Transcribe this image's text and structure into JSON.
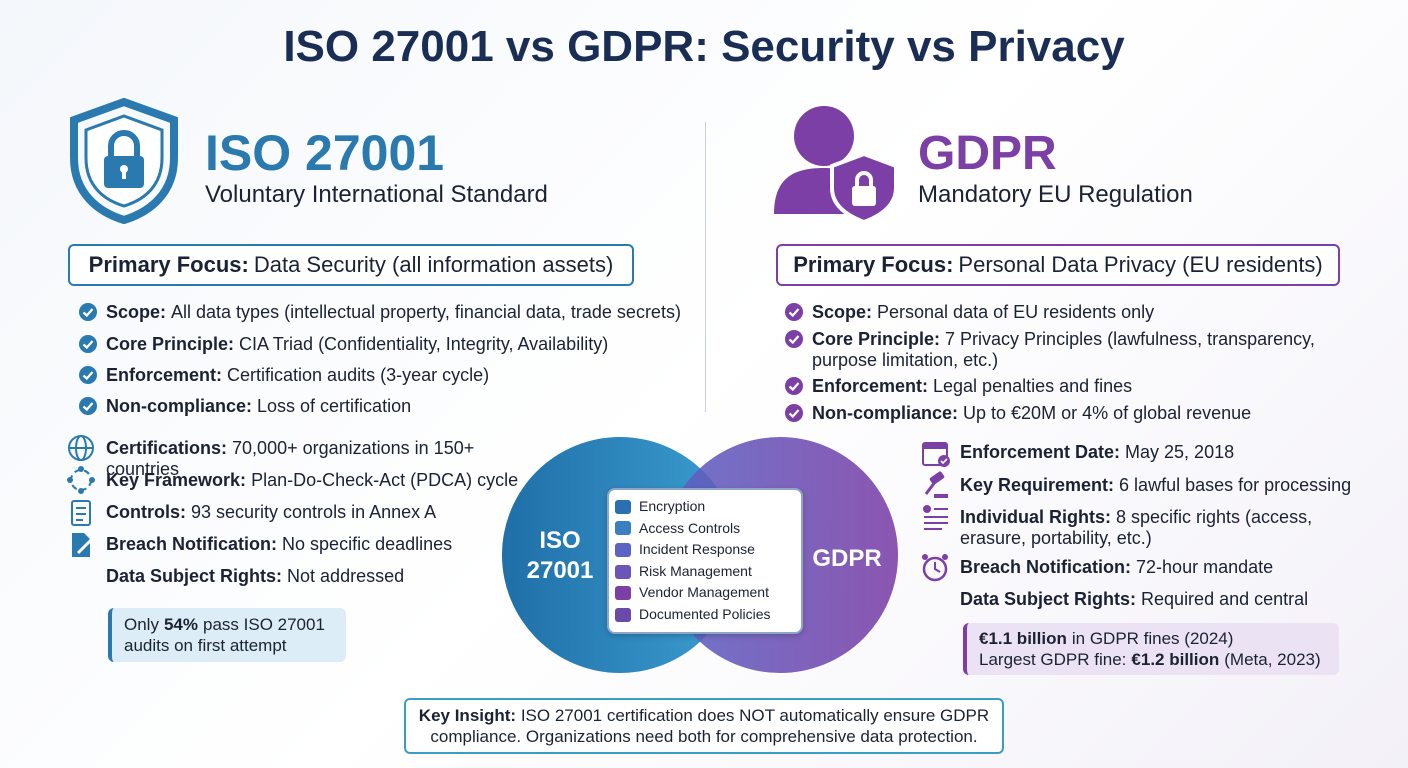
{
  "title": "ISO 27001 vs GDPR: Security vs Privacy",
  "iso": {
    "name": "ISO 27001",
    "subtitle": "Voluntary International Standard",
    "focus": {
      "label": "Primary Focus:",
      "text": "Data Security (all information assets)"
    },
    "points": [
      {
        "label": "Scope:",
        "text": "All data types (intellectual property, financial data, trade secrets)"
      },
      {
        "label": "Core Principle:",
        "text": "CIA Triad (Confidentiality, Integrity, Availability)"
      },
      {
        "label": "Enforcement:",
        "text": "Certification audits (3-year cycle)"
      },
      {
        "label": "Non-compliance:",
        "text": "Loss of certification"
      }
    ],
    "facts": [
      {
        "label": "Certifications:",
        "text": "70,000+ organizations in 150+ countries"
      },
      {
        "label": "Key Framework:",
        "text": "Plan-Do-Check-Act (PDCA) cycle"
      },
      {
        "label": "Controls:",
        "text": "93 security controls in Annex A"
      },
      {
        "label": "Breach Notification:",
        "text": "No specific deadlines"
      },
      {
        "label": "Data Subject Rights:",
        "text": "Not addressed"
      }
    ],
    "stat": [
      {
        "pre": "Only",
        "bold": "54%",
        "post": "pass ISO 27001 audits on first attempt"
      }
    ]
  },
  "gdpr": {
    "name": "GDPR",
    "subtitle": "Mandatory EU Regulation",
    "focus": {
      "label": "Primary Focus:",
      "text": "Personal Data Privacy (EU residents)"
    },
    "points": [
      {
        "label": "Scope:",
        "text": "Personal data of EU residents only"
      },
      {
        "label": "Core Principle:",
        "text": "7 Privacy Principles (lawfulness, transparency, purpose limitation, etc.)"
      },
      {
        "label": "Enforcement:",
        "text": "Legal penalties and fines"
      },
      {
        "label": "Non-compliance:",
        "text": "Up to €20M or 4% of global revenue"
      }
    ],
    "facts": [
      {
        "label": "Enforcement Date:",
        "text": "May 25, 2018"
      },
      {
        "label": "Key Requirement:",
        "text": "6 lawful bases for processing"
      },
      {
        "label": "Individual Rights:",
        "text": "8 specific rights (access, erasure, portability, etc.)"
      },
      {
        "label": "Breach Notification:",
        "text": "72-hour mandate"
      },
      {
        "label": "Data Subject Rights:",
        "text": "Required and central"
      }
    ],
    "stat": [
      {
        "bold": "€1.1 billion",
        "post": "in GDPR fines (2024)"
      },
      {
        "pre": "Largest GDPR fine:",
        "bold": "€1.2 billion",
        "post": "(Meta, 2023)"
      }
    ]
  },
  "venn": {
    "left": "ISO 27001",
    "right": "GDPR",
    "shared": [
      "Encryption",
      "Access Controls",
      "Incident Response",
      "Risk Management",
      "Vendor Management",
      "Documented Policies"
    ]
  },
  "insight": {
    "label": "Key Insight:",
    "text": "ISO 27001 certification does NOT automatically ensure GDPR compliance. Organizations need both for comprehensive data protection."
  }
}
